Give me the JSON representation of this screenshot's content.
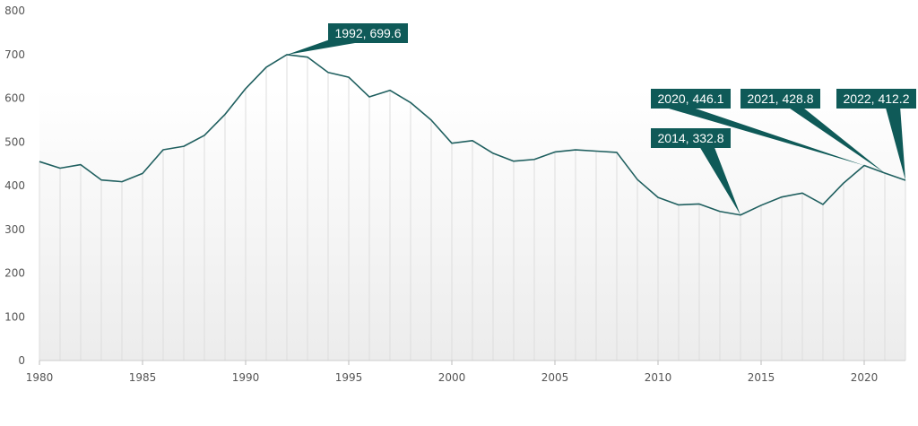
{
  "colors": {
    "line": "#1f5f5f",
    "callout_bg": "#0f5a58",
    "callout_text": "#ffffff",
    "gridline": "#dddddd",
    "axis_text": "#555555"
  },
  "chart_data": {
    "type": "area",
    "title": "",
    "xlabel": "",
    "ylabel": "",
    "xlim": [
      1980,
      2022
    ],
    "ylim": [
      0,
      800
    ],
    "x_ticks": [
      "1980",
      "1985",
      "1990",
      "1995",
      "2000",
      "2005",
      "2010",
      "2015",
      "2020"
    ],
    "y_ticks": [
      "0",
      "100",
      "200",
      "300",
      "400",
      "500",
      "600",
      "700",
      "800"
    ],
    "grid": "vertical lines at each year",
    "legend": "none",
    "series": [
      {
        "x": [
          1980,
          1981,
          1982,
          1983,
          1984,
          1985,
          1986,
          1987,
          1988,
          1989,
          1990,
          1991,
          1992,
          1993,
          1994,
          1995,
          1996,
          1997,
          1998,
          1999,
          2000,
          2001,
          2002,
          2003,
          2004,
          2005,
          2006,
          2007,
          2008,
          2009,
          2010,
          2011,
          2012,
          2013,
          2014,
          2015,
          2016,
          2017,
          2018,
          2019,
          2020,
          2021,
          2022
        ],
        "values": [
          455,
          440,
          448,
          413,
          409,
          428,
          482,
          490,
          515,
          563,
          622,
          671,
          699.6,
          694,
          659,
          648,
          603,
          618,
          590,
          550,
          497,
          503,
          474,
          456,
          460,
          477,
          482,
          479,
          476,
          414,
          373,
          356,
          358,
          341,
          332.8,
          355,
          374,
          383,
          357,
          406,
          446.1,
          428.8,
          412.2
        ]
      }
    ],
    "annotations": [
      {
        "x": 1992,
        "y": 699.6,
        "label": "1992, 699.6"
      },
      {
        "x": 2014,
        "y": 332.8,
        "label": "2014, 332.8"
      },
      {
        "x": 2020,
        "y": 446.1,
        "label": "2020, 446.1"
      },
      {
        "x": 2021,
        "y": 428.8,
        "label": "2021, 428.8"
      },
      {
        "x": 2022,
        "y": 412.2,
        "label": "2022, 412.2"
      }
    ]
  }
}
